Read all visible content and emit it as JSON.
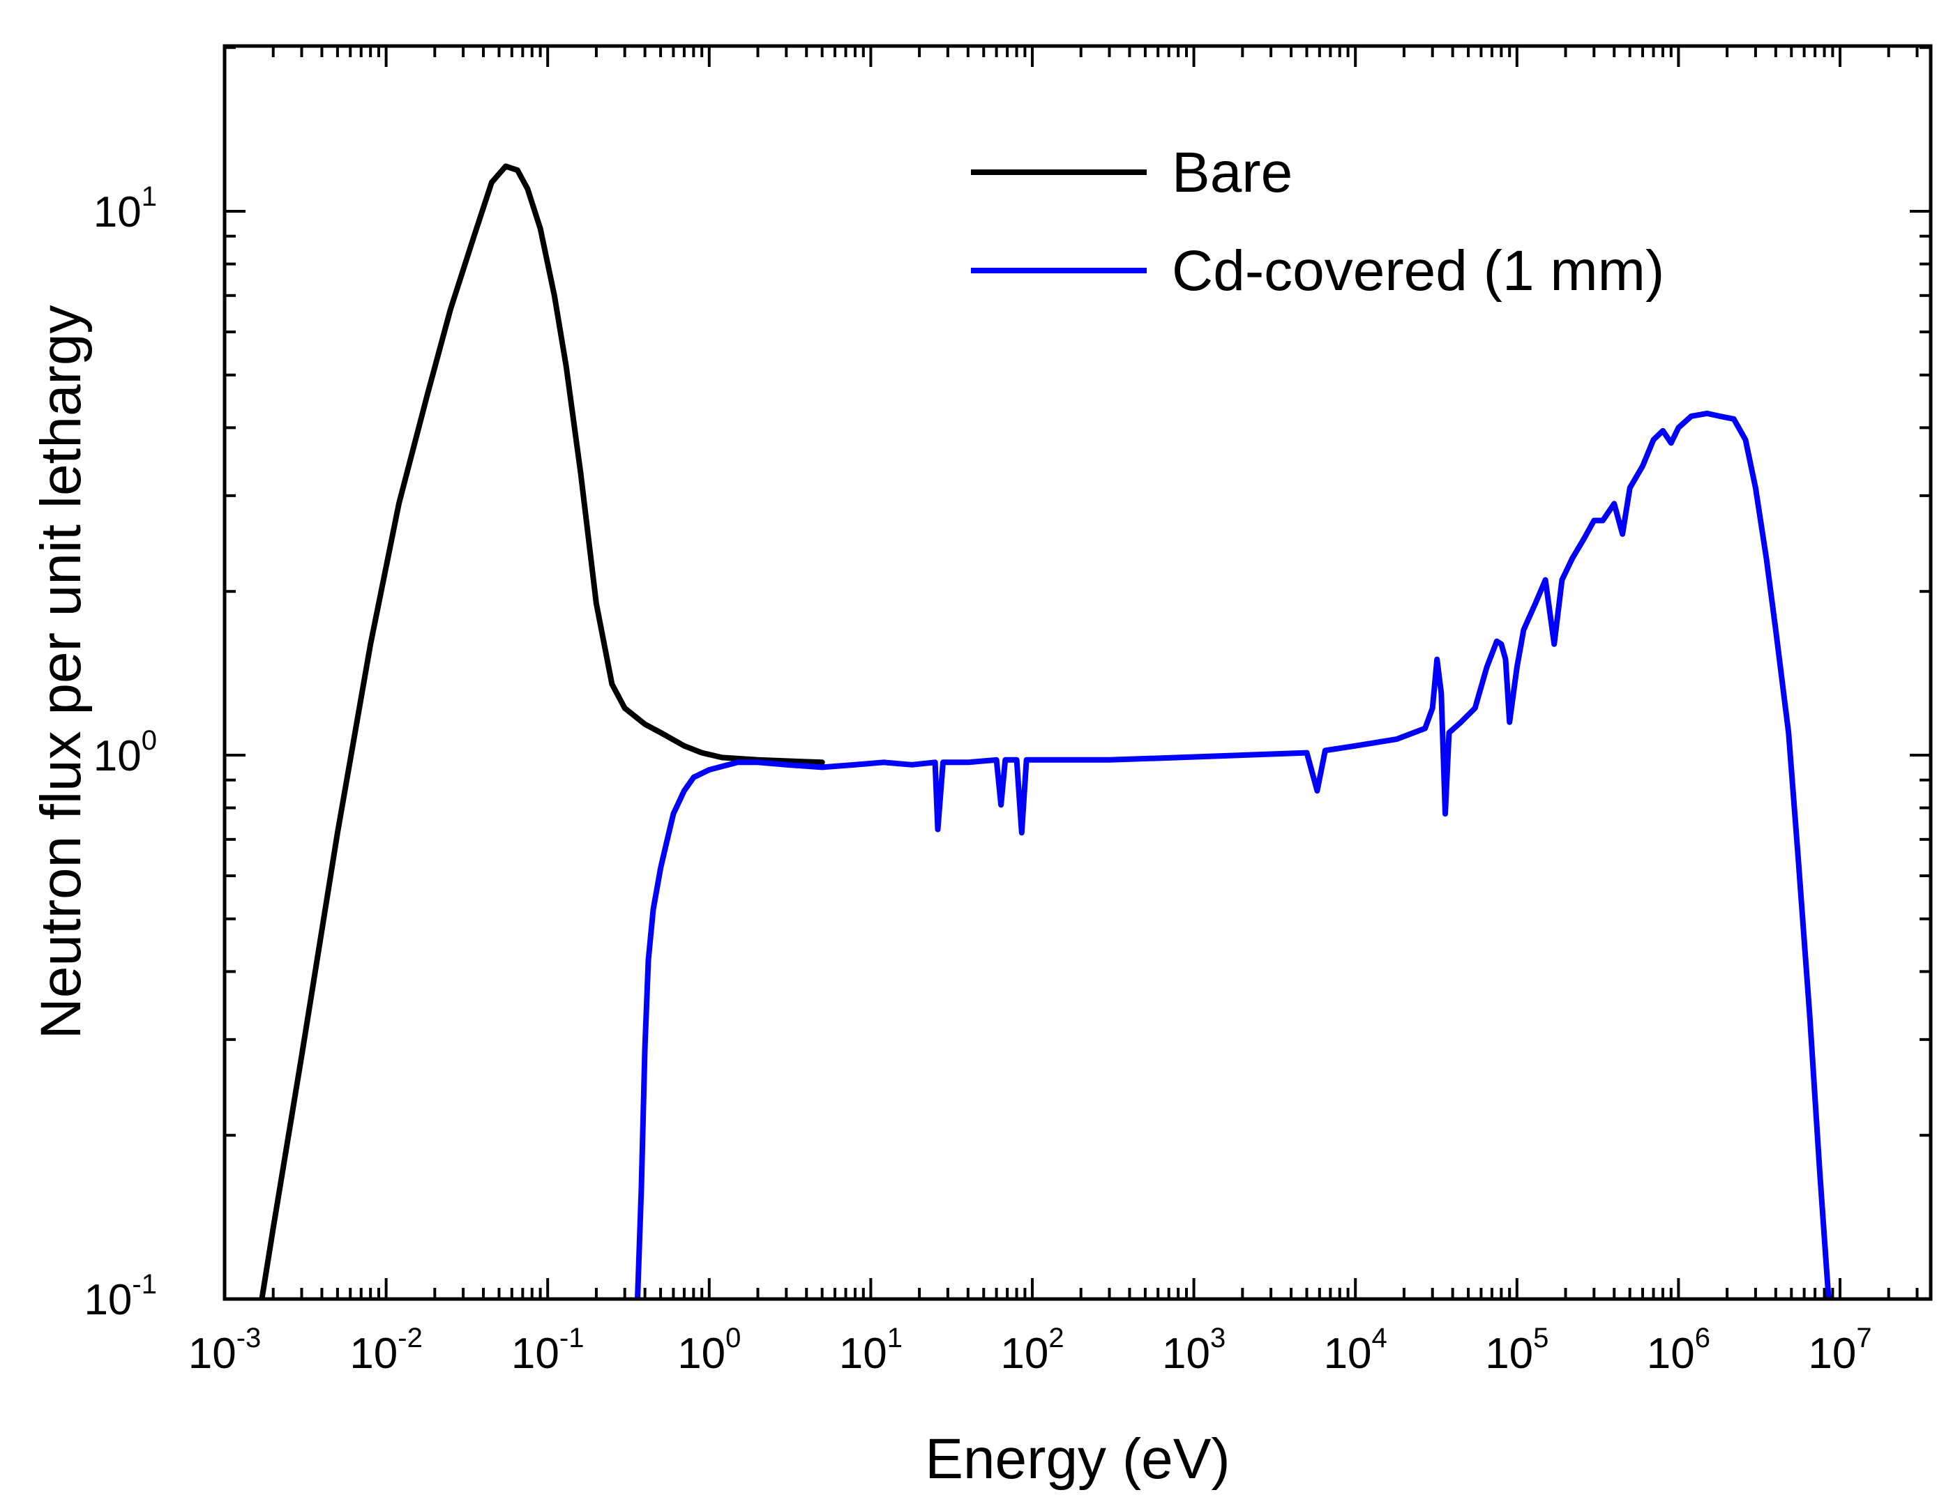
{
  "chart_data": {
    "type": "line",
    "title": "",
    "xlabel": "Energy (eV)",
    "ylabel": "Neutron flux per unit lethargy",
    "xscale": "log",
    "yscale": "log",
    "xlim": [
      0.001,
      30000000
    ],
    "ylim": [
      0.1,
      20
    ],
    "x_ticks": [
      {
        "value": 0.001,
        "base": "10",
        "exp": "-3"
      },
      {
        "value": 0.01,
        "base": "10",
        "exp": "-2"
      },
      {
        "value": 0.1,
        "base": "10",
        "exp": "-1"
      },
      {
        "value": 1,
        "base": "10",
        "exp": "0"
      },
      {
        "value": 10,
        "base": "10",
        "exp": "1"
      },
      {
        "value": 100,
        "base": "10",
        "exp": "2"
      },
      {
        "value": 1000,
        "base": "10",
        "exp": "3"
      },
      {
        "value": 10000,
        "base": "10",
        "exp": "4"
      },
      {
        "value": 100000,
        "base": "10",
        "exp": "5"
      },
      {
        "value": 1000000,
        "base": "10",
        "exp": "6"
      },
      {
        "value": 10000000,
        "base": "10",
        "exp": "7"
      }
    ],
    "y_ticks": [
      {
        "value": 0.1,
        "base": "10",
        "exp": "-1"
      },
      {
        "value": 1,
        "base": "10",
        "exp": "0"
      },
      {
        "value": 10,
        "base": "10",
        "exp": "1"
      }
    ],
    "legend_position": "top-right",
    "series": [
      {
        "name": "Bare",
        "color": "#000000",
        "points": [
          [
            0.0017,
            0.1
          ],
          [
            0.002,
            0.135
          ],
          [
            0.003,
            0.28
          ],
          [
            0.005,
            0.72
          ],
          [
            0.008,
            1.6
          ],
          [
            0.012,
            2.9
          ],
          [
            0.018,
            4.6
          ],
          [
            0.025,
            6.6
          ],
          [
            0.035,
            9.0
          ],
          [
            0.045,
            11.3
          ],
          [
            0.055,
            12.1
          ],
          [
            0.065,
            11.9
          ],
          [
            0.075,
            11.0
          ],
          [
            0.09,
            9.3
          ],
          [
            0.11,
            7.0
          ],
          [
            0.13,
            5.2
          ],
          [
            0.16,
            3.3
          ],
          [
            0.2,
            1.9
          ],
          [
            0.25,
            1.35
          ],
          [
            0.3,
            1.22
          ],
          [
            0.4,
            1.14
          ],
          [
            0.5,
            1.1
          ],
          [
            0.7,
            1.04
          ],
          [
            0.9,
            1.01
          ],
          [
            1.2,
            0.99
          ],
          [
            2,
            0.98
          ],
          [
            5,
            0.97
          ]
        ]
      },
      {
        "name": "Cd-covered (1 mm)",
        "color": "#0000ff",
        "points": [
          [
            0.35,
            0.07
          ],
          [
            0.36,
            0.1
          ],
          [
            0.38,
            0.16
          ],
          [
            0.4,
            0.29
          ],
          [
            0.42,
            0.42
          ],
          [
            0.45,
            0.52
          ],
          [
            0.5,
            0.62
          ],
          [
            0.55,
            0.7
          ],
          [
            0.6,
            0.78
          ],
          [
            0.7,
            0.86
          ],
          [
            0.8,
            0.91
          ],
          [
            1.0,
            0.94
          ],
          [
            1.5,
            0.97
          ],
          [
            2,
            0.97
          ],
          [
            3,
            0.96
          ],
          [
            5,
            0.95
          ],
          [
            8,
            0.96
          ],
          [
            12,
            0.97
          ],
          [
            18,
            0.96
          ],
          [
            25,
            0.97
          ],
          [
            26,
            0.73
          ],
          [
            28,
            0.97
          ],
          [
            40,
            0.97
          ],
          [
            60,
            0.98
          ],
          [
            64,
            0.81
          ],
          [
            68,
            0.98
          ],
          [
            80,
            0.98
          ],
          [
            86,
            0.72
          ],
          [
            92,
            0.98
          ],
          [
            150,
            0.98
          ],
          [
            300,
            0.98
          ],
          [
            800,
            0.99
          ],
          [
            2000,
            1.0
          ],
          [
            5000,
            1.01
          ],
          [
            5800,
            0.86
          ],
          [
            6500,
            1.02
          ],
          [
            10000,
            1.04
          ],
          [
            18000,
            1.07
          ],
          [
            27000,
            1.12
          ],
          [
            30000,
            1.22
          ],
          [
            32000,
            1.5
          ],
          [
            34000,
            1.3
          ],
          [
            36000,
            0.78
          ],
          [
            38000,
            1.1
          ],
          [
            45000,
            1.15
          ],
          [
            55000,
            1.22
          ],
          [
            65000,
            1.45
          ],
          [
            75000,
            1.62
          ],
          [
            80000,
            1.6
          ],
          [
            85000,
            1.5
          ],
          [
            90000,
            1.15
          ],
          [
            100000,
            1.45
          ],
          [
            110000,
            1.7
          ],
          [
            130000,
            1.9
          ],
          [
            150000,
            2.1
          ],
          [
            170000,
            1.6
          ],
          [
            190000,
            2.1
          ],
          [
            220000,
            2.3
          ],
          [
            260000,
            2.5
          ],
          [
            300000,
            2.7
          ],
          [
            340000,
            2.7
          ],
          [
            400000,
            2.9
          ],
          [
            450000,
            2.55
          ],
          [
            500000,
            3.1
          ],
          [
            600000,
            3.4
          ],
          [
            700000,
            3.8
          ],
          [
            800000,
            3.95
          ],
          [
            900000,
            3.75
          ],
          [
            1000000,
            4.0
          ],
          [
            1200000,
            4.2
          ],
          [
            1500000,
            4.25
          ],
          [
            1800000,
            4.2
          ],
          [
            2200000,
            4.15
          ],
          [
            2600000,
            3.8
          ],
          [
            3000000,
            3.1
          ],
          [
            3500000,
            2.3
          ],
          [
            4000000,
            1.7
          ],
          [
            4800000,
            1.1
          ],
          [
            5500000,
            0.65
          ],
          [
            6500000,
            0.33
          ],
          [
            7500000,
            0.17
          ],
          [
            8500000,
            0.1
          ],
          [
            9000000,
            0.07
          ]
        ]
      }
    ]
  }
}
